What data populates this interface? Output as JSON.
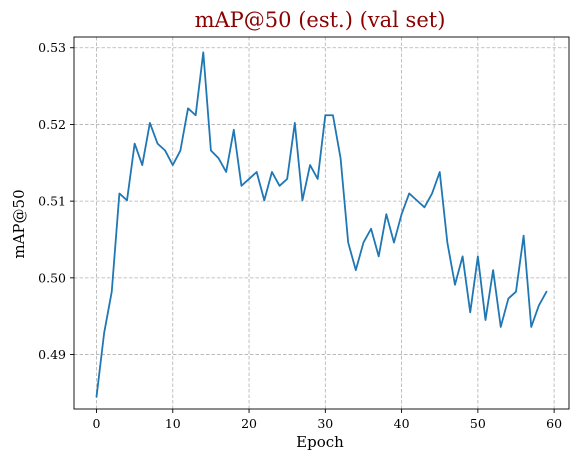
{
  "chart_data": {
    "type": "line",
    "title": "mAP@50 (est.) (val set)",
    "xlabel": "Epoch",
    "ylabel": "mAP@50",
    "xlim": [
      -2.95,
      61.95
    ],
    "ylim": [
      0.4829,
      0.5314
    ],
    "xticks": [
      0,
      10,
      20,
      30,
      40,
      50,
      60
    ],
    "yticks": [
      0.49,
      0.5,
      0.51,
      0.52,
      0.53
    ],
    "ytick_labels": [
      "0.49",
      "0.50",
      "0.51",
      "0.52",
      "0.53"
    ],
    "grid": true,
    "legend": "none",
    "x": [
      0,
      1,
      2,
      3,
      4,
      5,
      6,
      7,
      8,
      9,
      10,
      11,
      12,
      13,
      14,
      15,
      16,
      17,
      18,
      19,
      20,
      21,
      22,
      23,
      24,
      25,
      26,
      27,
      28,
      29,
      30,
      31,
      32,
      33,
      34,
      35,
      36,
      37,
      38,
      39,
      40,
      41,
      42,
      43,
      44,
      45,
      46,
      47,
      48,
      49,
      50,
      51,
      52,
      53,
      54,
      55,
      56,
      57,
      58,
      59
    ],
    "series": [
      {
        "values": [
          0.4845,
          0.4928,
          0.4982,
          0.511,
          0.5101,
          0.5175,
          0.5147,
          0.5202,
          0.5175,
          0.5166,
          0.5147,
          0.5166,
          0.5221,
          0.5212,
          0.5294,
          0.5166,
          0.5156,
          0.5138,
          0.5193,
          0.512,
          0.5129,
          0.5138,
          0.5101,
          0.5138,
          0.512,
          0.5129,
          0.5202,
          0.5101,
          0.5147,
          0.5129,
          0.5212,
          0.5212,
          0.5156,
          0.5046,
          0.501,
          0.5046,
          0.5064,
          0.5028,
          0.5083,
          0.5046,
          0.5083,
          0.511,
          0.5101,
          0.5092,
          0.511,
          0.5138,
          0.5046,
          0.4991,
          0.5028,
          0.4955,
          0.5028,
          0.4945,
          0.501,
          0.4936,
          0.4973,
          0.4982,
          0.5055,
          0.4936,
          0.4964,
          0.4982
        ],
        "color": "#1f77b4"
      }
    ]
  },
  "colors": {
    "line": "#1f77b4",
    "title": "#8b0000",
    "grid": "#b0b0b0",
    "axis": "#000000"
  }
}
